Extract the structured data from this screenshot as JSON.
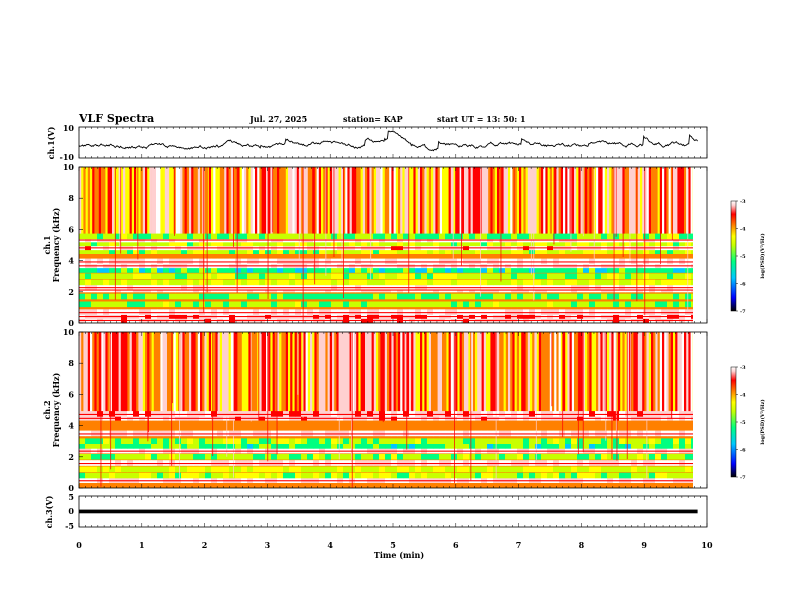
{
  "header": {
    "title": "VLF Spectra",
    "date": "Jul. 27, 2025",
    "station": "station= KAP",
    "start": "start  UT  =   13: 50: 1"
  },
  "colors": {
    "spectrogram_scale": [
      "#000000",
      "#0000ff",
      "#00c8ff",
      "#00ff80",
      "#c8ff00",
      "#ffff00",
      "#ff8000",
      "#ff0000",
      "#ffd0d0",
      "#ffffff"
    ],
    "trace": "#000000"
  },
  "chart_data": [
    {
      "type": "line",
      "name": "ch1-waveform",
      "ylabel": "ch.1(V)",
      "ylim": [
        -10,
        10
      ],
      "ytick_labels": [
        "10",
        "-10"
      ],
      "xlim": [
        0,
        10
      ],
      "description_values": {
        "x_min": 0,
        "x_max": 9.85,
        "baseline": -2,
        "min": -9,
        "max": 9
      }
    },
    {
      "type": "heatmap",
      "name": "ch1-spectrogram",
      "ylabel": "ch.1",
      "ylabel2": "Frequency  (kHz)",
      "ylim": [
        0,
        10
      ],
      "ytick_labels": [
        "0",
        "2",
        "4",
        "6",
        "8",
        "10"
      ],
      "xlim": [
        0,
        9.85
      ],
      "colorbar": {
        "label": "log(PSD)(V²/Hz)",
        "range": [
          -7,
          -3
        ],
        "tick_labels": [
          "-3",
          "-4",
          "-5",
          "-6",
          "-7"
        ]
      },
      "bands_khz": [
        0.2,
        0.45,
        0.7,
        1.2,
        1.7,
        2.15,
        2.3,
        2.6,
        3.0,
        3.4,
        3.7,
        3.95,
        4.6,
        4.85,
        5.1,
        5.35,
        5.55
      ],
      "band_levels": [
        -3.5,
        -3.6,
        -3.4,
        -5.3,
        -5.4,
        -3.3,
        -3.2,
        -5.0,
        -5.2,
        -5.6,
        -3.4,
        -3.3,
        -5.2,
        -3.5,
        -5.1,
        -3.2,
        -5.3
      ]
    },
    {
      "type": "heatmap",
      "name": "ch2-spectrogram",
      "ylabel": "ch.2",
      "ylabel2": "Frequency  (kHz)",
      "ylim": [
        0,
        10
      ],
      "ytick_labels": [
        "0",
        "2",
        "4",
        "6",
        "8",
        "10"
      ],
      "xlim": [
        0,
        9.85
      ],
      "colorbar": {
        "label": "log(PSD)(V²/Hz)",
        "range": [
          -7,
          -3
        ],
        "tick_labels": [
          "-3",
          "-4",
          "-5",
          "-6",
          "-7"
        ]
      },
      "bands_khz": [
        0.5,
        0.8,
        1.2,
        1.6,
        2.0,
        2.4,
        2.7,
        3.0,
        3.5,
        4.5,
        4.75
      ],
      "band_levels": [
        -3.4,
        -5.2,
        -5.0,
        -3.4,
        -5.3,
        -3.3,
        -5.5,
        -5.2,
        -3.3,
        -3.5,
        -3.6
      ]
    },
    {
      "type": "line",
      "name": "ch3-waveform",
      "ylabel": "ch.3(V)",
      "ylim": [
        -5,
        5
      ],
      "ytick_labels": [
        "5",
        "0",
        "-5"
      ],
      "xlim": [
        0,
        10
      ],
      "description_values": {
        "x_min": 0,
        "x_max": 9.85,
        "level": 0,
        "half_width": 0.6
      }
    },
    {
      "type": "axis",
      "name": "time-axis",
      "xlabel": "Time  (min)",
      "xlim": [
        0,
        10
      ],
      "xtick_labels": [
        "0",
        "1",
        "2",
        "3",
        "4",
        "5",
        "6",
        "7",
        "8",
        "9",
        "10"
      ]
    }
  ]
}
